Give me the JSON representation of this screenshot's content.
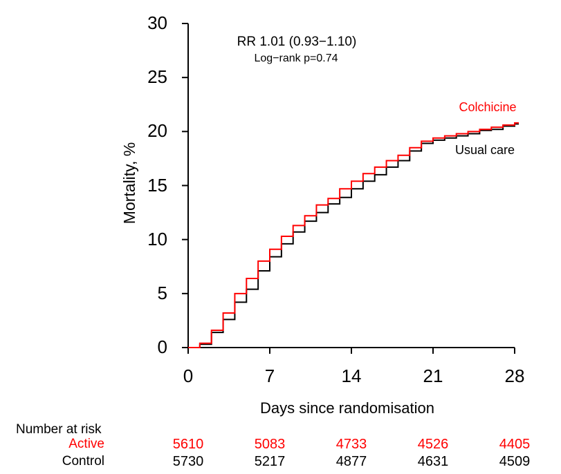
{
  "figure": {
    "annotation_rr": "RR 1.01 (0.93−1.10)",
    "annotation_logrank": "Log−rank p=0.74"
  },
  "axes": {
    "y_label": "Mortality, %",
    "x_label": "Days since randomisation",
    "y_tick_labels": [
      "30",
      "25",
      "20",
      "15",
      "10",
      "5",
      "0"
    ],
    "x_tick_labels": [
      "0",
      "7",
      "14",
      "21",
      "28"
    ]
  },
  "chart_data": {
    "type": "line",
    "subtype": "step-kaplan-meier",
    "title": "",
    "xlabel": "Days since randomisation",
    "ylabel": "Mortality, %",
    "xlim": [
      0,
      28
    ],
    "ylim": [
      0,
      30
    ],
    "x_ticks": [
      0,
      7,
      14,
      21,
      28
    ],
    "y_ticks": [
      0,
      5,
      10,
      15,
      20,
      25,
      30
    ],
    "grid": false,
    "x": [
      0,
      1,
      2,
      3,
      4,
      5,
      6,
      7,
      8,
      9,
      10,
      11,
      12,
      13,
      14,
      15,
      16,
      17,
      18,
      19,
      20,
      21,
      22,
      23,
      24,
      25,
      26,
      27,
      28
    ],
    "series": [
      {
        "name": "Colchicine",
        "color": "#ff0000",
        "values": [
          0,
          0.4,
          1.6,
          3.2,
          5.0,
          6.4,
          8.0,
          9.1,
          10.3,
          11.3,
          12.2,
          13.2,
          13.8,
          14.7,
          15.4,
          16.1,
          16.7,
          17.3,
          17.8,
          18.5,
          19.1,
          19.4,
          19.6,
          19.8,
          20.0,
          20.2,
          20.4,
          20.6,
          20.8
        ]
      },
      {
        "name": "Usual care",
        "color": "#000000",
        "values": [
          0,
          0.3,
          1.4,
          2.6,
          4.2,
          5.4,
          7.1,
          8.4,
          9.6,
          10.7,
          11.7,
          12.5,
          13.3,
          13.9,
          14.7,
          15.4,
          16.0,
          16.7,
          17.3,
          18.2,
          18.9,
          19.2,
          19.4,
          19.6,
          19.8,
          20.1,
          20.2,
          20.5,
          20.7
        ]
      }
    ],
    "annotations": [
      "RR 1.01 (0.93−1.10)",
      "Log−rank p=0.74"
    ],
    "number_at_risk": {
      "header": "Number at risk",
      "timepoints": [
        0,
        7,
        14,
        21,
        28
      ],
      "rows": [
        {
          "label": "Active",
          "color": "#ff0000",
          "counts": [
            "5610",
            "5083",
            "4733",
            "4526",
            "4405"
          ]
        },
        {
          "label": "Control",
          "color": "#000000",
          "counts": [
            "5730",
            "5217",
            "4877",
            "4631",
            "4509"
          ]
        }
      ]
    }
  }
}
